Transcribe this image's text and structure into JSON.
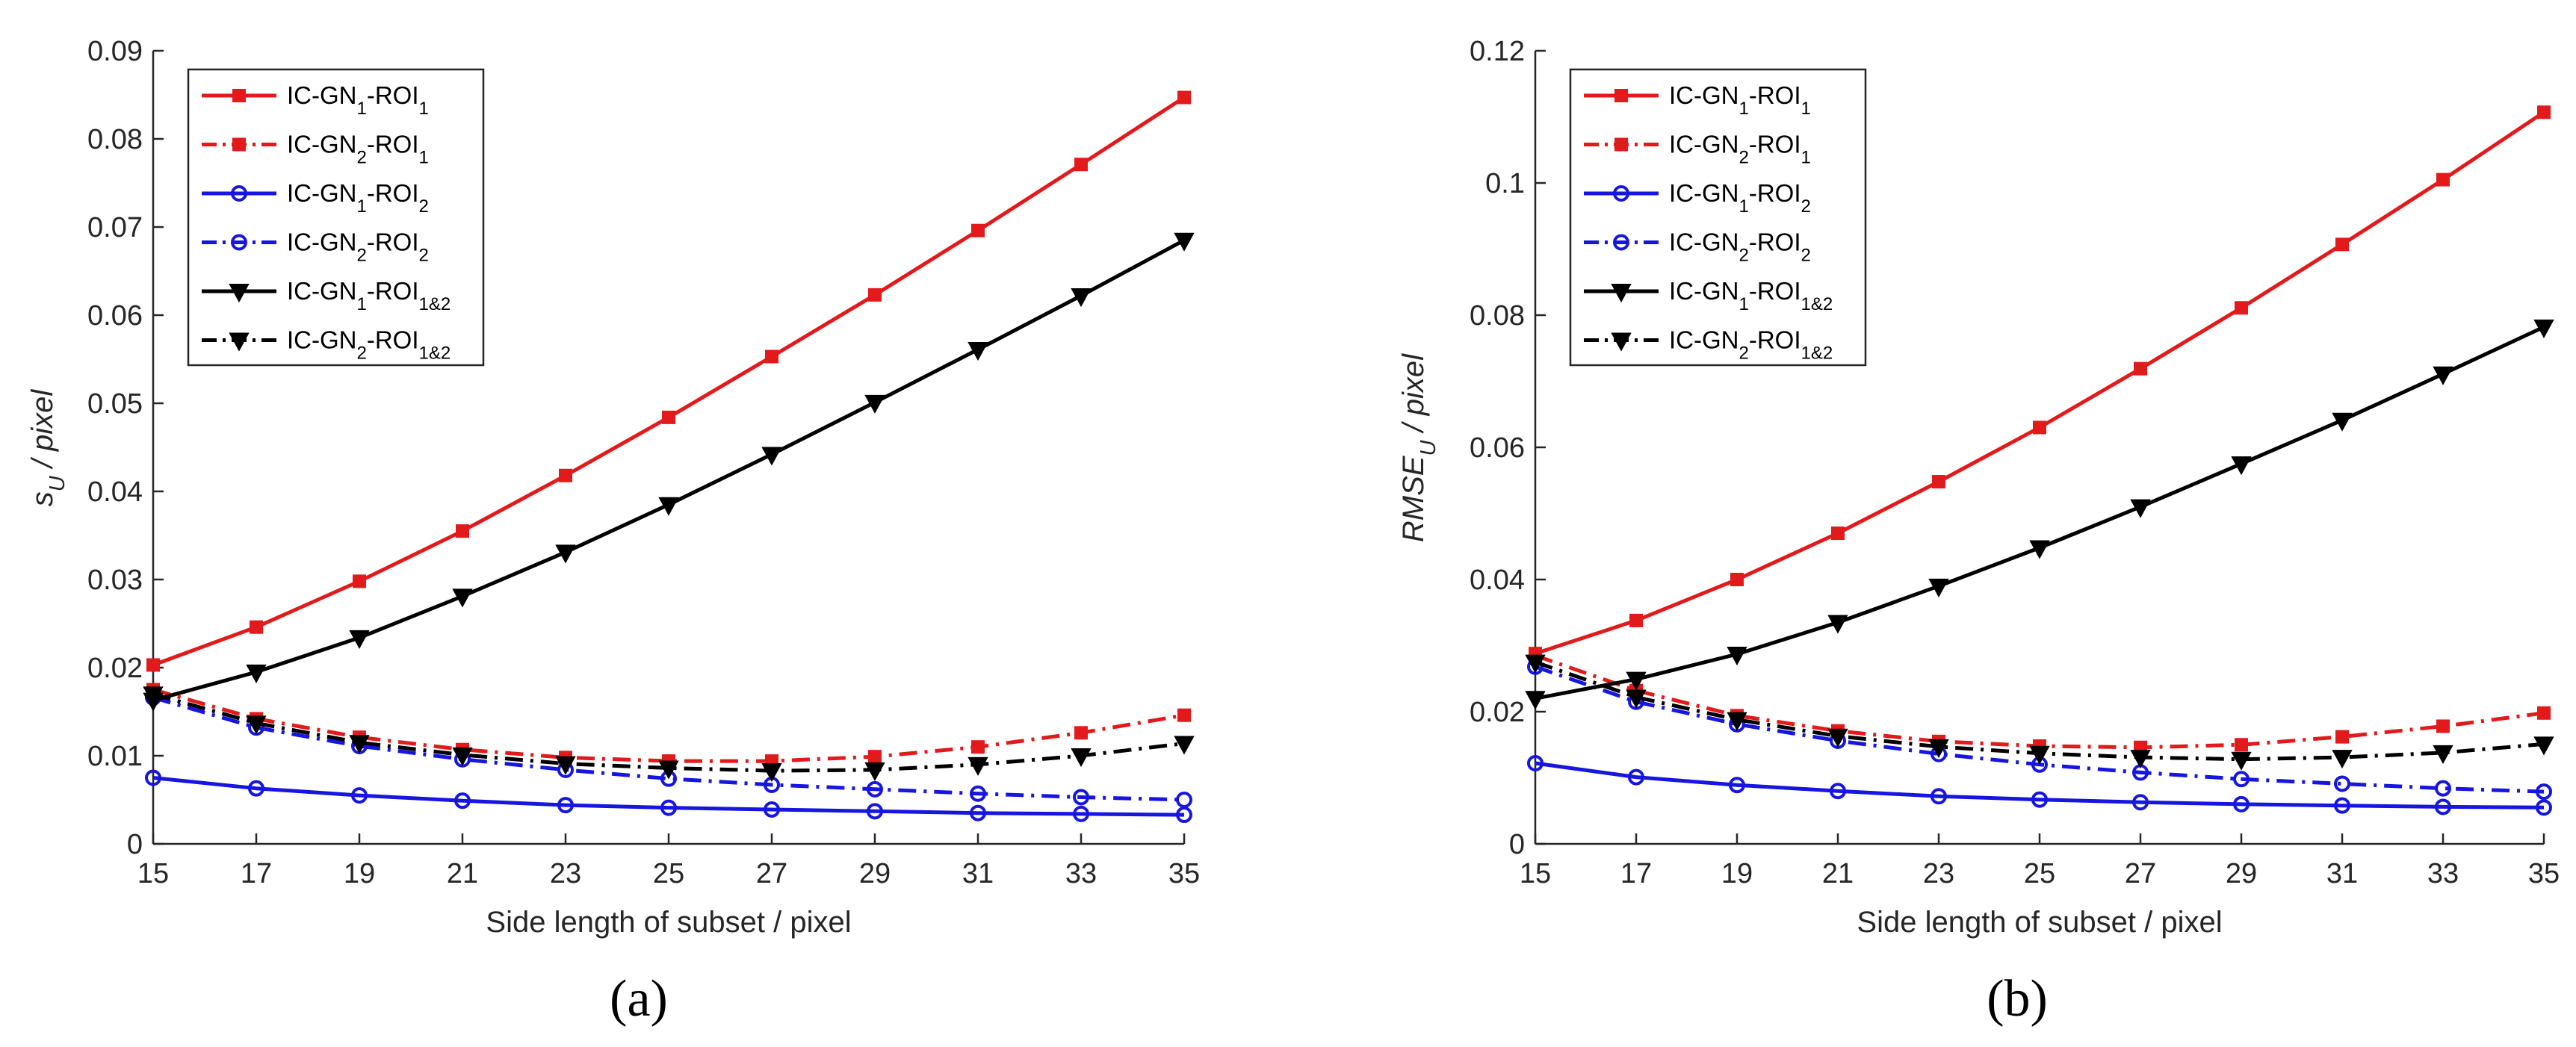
{
  "chart_data": [
    {
      "type": "line",
      "panel_label": "(a)",
      "xlabel": "Side length of subset / pixel",
      "ylabel": {
        "base": "s",
        "sub": "U",
        "rest": " / pixel"
      },
      "xlim": [
        15,
        35
      ],
      "ylim": [
        0,
        0.09
      ],
      "x_ticks": [
        "15",
        "17",
        "19",
        "21",
        "23",
        "25",
        "27",
        "29",
        "31",
        "33",
        "35"
      ],
      "y_ticks": [
        "0",
        "0.01",
        "0.02",
        "0.03",
        "0.04",
        "0.05",
        "0.06",
        "0.07",
        "0.08",
        "0.09"
      ],
      "grid": false,
      "legend_position": "top-left",
      "x": [
        15,
        17,
        19,
        21,
        23,
        25,
        27,
        29,
        31,
        33,
        35
      ],
      "series": [
        {
          "name": "IC-GN1-ROI1",
          "label": {
            "a": "IC-GN",
            "b": "1",
            "c": "-ROI",
            "d": "1"
          },
          "color": "#e31a1c",
          "style": "solid",
          "marker": "square",
          "values": [
            0.0203,
            0.0246,
            0.0298,
            0.0355,
            0.0418,
            0.0484,
            0.0553,
            0.0623,
            0.0696,
            0.0771,
            0.0847
          ]
        },
        {
          "name": "IC-GN2-ROI1",
          "label": {
            "a": "IC-GN",
            "b": "2",
            "c": "-ROI",
            "d": "1"
          },
          "color": "#e31a1c",
          "style": "dashdot",
          "marker": "square",
          "values": [
            0.0175,
            0.0142,
            0.0121,
            0.0107,
            0.0098,
            0.0094,
            0.0094,
            0.0099,
            0.011,
            0.0126,
            0.0146
          ]
        },
        {
          "name": "IC-GN1-ROI2",
          "label": {
            "a": "IC-GN",
            "b": "1",
            "c": "-ROI",
            "d": "2"
          },
          "color": "#1616e0",
          "style": "solid",
          "marker": "circle",
          "values": [
            0.0075,
            0.0063,
            0.0055,
            0.0049,
            0.0044,
            0.0041,
            0.0039,
            0.0037,
            0.0035,
            0.0034,
            0.0033
          ]
        },
        {
          "name": "IC-GN2-ROI2",
          "label": {
            "a": "IC-GN",
            "b": "2",
            "c": "-ROI",
            "d": "2"
          },
          "color": "#1616e0",
          "style": "dashdot",
          "marker": "circle",
          "values": [
            0.0166,
            0.0132,
            0.0111,
            0.0096,
            0.0084,
            0.0074,
            0.0067,
            0.0062,
            0.0057,
            0.0053,
            0.005
          ]
        },
        {
          "name": "IC-GN1-ROI1&2",
          "label": {
            "a": "IC-GN",
            "b": "1",
            "c": "-ROI",
            "d": "1&2"
          },
          "color": "#000000",
          "style": "solid",
          "marker": "triangle-down",
          "values": [
            0.0163,
            0.0195,
            0.0234,
            0.0281,
            0.0331,
            0.0385,
            0.0442,
            0.0501,
            0.0561,
            0.0622,
            0.0685
          ]
        },
        {
          "name": "IC-GN2-ROI1&2",
          "label": {
            "a": "IC-GN",
            "b": "2",
            "c": "-ROI",
            "d": "1&2"
          },
          "color": "#000000",
          "style": "dashdot",
          "marker": "triangle-down",
          "values": [
            0.017,
            0.0137,
            0.0115,
            0.0101,
            0.0091,
            0.0086,
            0.0083,
            0.0084,
            0.009,
            0.01,
            0.0114
          ]
        }
      ]
    },
    {
      "type": "line",
      "panel_label": "(b)",
      "xlabel": "Side length of subset / pixel",
      "ylabel": {
        "base": "RMSE",
        "sub": "U",
        "rest": " / pixel"
      },
      "xlim": [
        15,
        35
      ],
      "ylim": [
        0,
        0.12
      ],
      "x_ticks": [
        "15",
        "17",
        "19",
        "21",
        "23",
        "25",
        "27",
        "29",
        "31",
        "33",
        "35"
      ],
      "y_ticks": [
        "0",
        "0.02",
        "0.04",
        "0.06",
        "0.08",
        "0.1",
        "0.12"
      ],
      "grid": false,
      "legend_position": "top-left",
      "x": [
        15,
        17,
        19,
        21,
        23,
        25,
        27,
        29,
        31,
        33,
        35
      ],
      "series": [
        {
          "name": "IC-GN1-ROI1",
          "label": {
            "a": "IC-GN",
            "b": "1",
            "c": "-ROI",
            "d": "1"
          },
          "color": "#e31a1c",
          "style": "solid",
          "marker": "square",
          "values": [
            0.0288,
            0.0338,
            0.04,
            0.047,
            0.0548,
            0.063,
            0.0719,
            0.0811,
            0.0907,
            0.1005,
            0.1107
          ]
        },
        {
          "name": "IC-GN2-ROI1",
          "label": {
            "a": "IC-GN",
            "b": "2",
            "c": "-ROI",
            "d": "1"
          },
          "color": "#e31a1c",
          "style": "dashdot",
          "marker": "square",
          "values": [
            0.0285,
            0.0232,
            0.0194,
            0.0171,
            0.0155,
            0.0148,
            0.0146,
            0.015,
            0.0162,
            0.0178,
            0.0198
          ]
        },
        {
          "name": "IC-GN1-ROI2",
          "label": {
            "a": "IC-GN",
            "b": "1",
            "c": "-ROI",
            "d": "2"
          },
          "color": "#1616e0",
          "style": "solid",
          "marker": "circle",
          "values": [
            0.0122,
            0.0101,
            0.0089,
            0.008,
            0.0072,
            0.0067,
            0.0063,
            0.006,
            0.0058,
            0.0056,
            0.0055
          ]
        },
        {
          "name": "IC-GN2-ROI2",
          "label": {
            "a": "IC-GN",
            "b": "2",
            "c": "-ROI",
            "d": "2"
          },
          "color": "#1616e0",
          "style": "dashdot",
          "marker": "circle",
          "values": [
            0.0268,
            0.0215,
            0.0181,
            0.0156,
            0.0136,
            0.012,
            0.0108,
            0.0098,
            0.0091,
            0.0084,
            0.0079
          ]
        },
        {
          "name": "IC-GN1-ROI1&2",
          "label": {
            "a": "IC-GN",
            "b": "1",
            "c": "-ROI",
            "d": "1&2"
          },
          "color": "#000000",
          "style": "solid",
          "marker": "triangle-down",
          "values": [
            0.022,
            0.0249,
            0.0287,
            0.0335,
            0.039,
            0.0448,
            0.051,
            0.0575,
            0.0641,
            0.0711,
            0.0782
          ]
        },
        {
          "name": "IC-GN2-ROI1&2",
          "label": {
            "a": "IC-GN",
            "b": "2",
            "c": "-ROI",
            "d": "1&2"
          },
          "color": "#000000",
          "style": "dashdot",
          "marker": "triangle-down",
          "values": [
            0.0275,
            0.0222,
            0.0188,
            0.0163,
            0.0147,
            0.0137,
            0.0131,
            0.0128,
            0.0131,
            0.0138,
            0.0151
          ]
        }
      ]
    }
  ]
}
